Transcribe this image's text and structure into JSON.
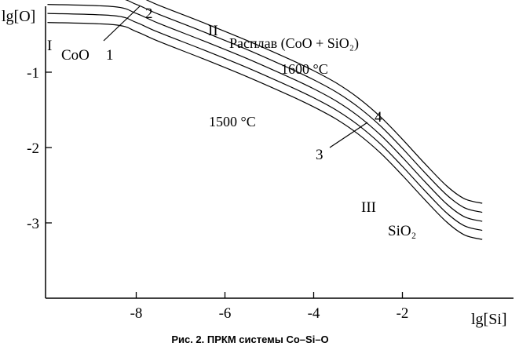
{
  "chart_data": {
    "type": "line",
    "ylabel": "lg[O]",
    "xlabel": "lg[Si]",
    "xlim": [
      -10,
      0.5
    ],
    "ylim": [
      -4,
      0.1
    ],
    "x_ticks": [
      -8,
      -6,
      -4,
      -2
    ],
    "y_ticks": [
      -1,
      -2,
      -3
    ],
    "grid": false,
    "curve_shape": {
      "x": [
        -10,
        -8.5,
        -8.0,
        -7.5,
        -6.5,
        -5.5,
        -4.5,
        -4.0,
        -3.5,
        -3.0,
        -2.5,
        -2.0,
        -1.5,
        -1.0,
        -0.6,
        -0.2
      ],
      "y": [
        -0.1,
        -0.13,
        -0.22,
        -0.35,
        -0.58,
        -0.82,
        -1.08,
        -1.22,
        -1.38,
        -1.58,
        -1.83,
        -2.13,
        -2.45,
        -2.75,
        -2.92,
        -2.98
      ]
    },
    "series": [
      {
        "label": "1",
        "offset": -0.24
      },
      {
        "label": "",
        "offset": -0.12
      },
      {
        "label": "",
        "offset": 0.0
      },
      {
        "label": "",
        "offset": 0.12
      },
      {
        "label": "2",
        "offset": 0.24
      }
    ],
    "annotations": {
      "region_I": "I",
      "coo": "CoO",
      "curve_1": "1",
      "curve_2": "2",
      "region_II": "II",
      "melt": "Расплав (CoO + SiO₂)",
      "t1600": "1600 °C",
      "t1500": "1500 °C",
      "curve_3": "3",
      "curve_4": "4",
      "region_III": "III",
      "sio2": "SiO₂"
    }
  },
  "caption": "Рис. 2. ПРКМ системы Co–Si–O"
}
